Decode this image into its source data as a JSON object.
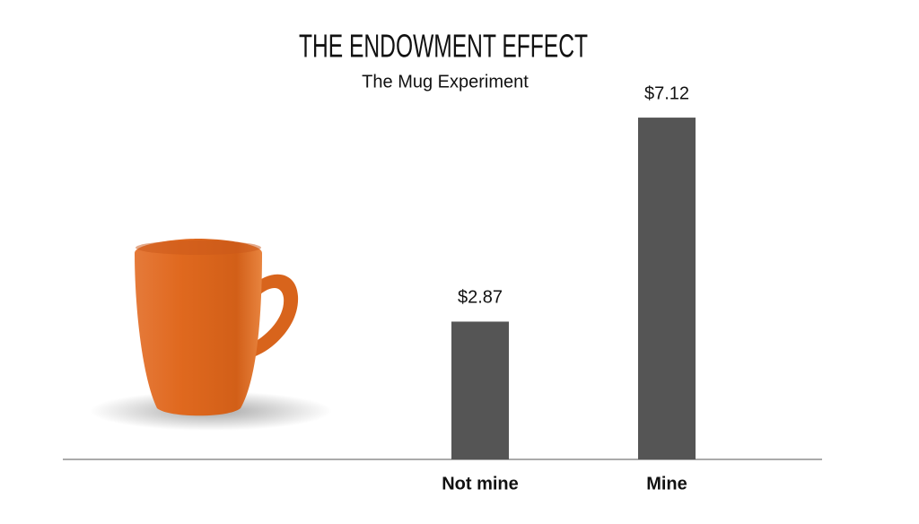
{
  "chart_data": {
    "type": "bar",
    "title": "THE ENDOWMENT EFFECT",
    "subtitle": "The Mug Experiment",
    "categories": [
      "Not mine",
      "Mine"
    ],
    "values": [
      2.87,
      7.12
    ],
    "value_labels": [
      "$2.87",
      "$7.12"
    ],
    "color": "#555555"
  }
}
